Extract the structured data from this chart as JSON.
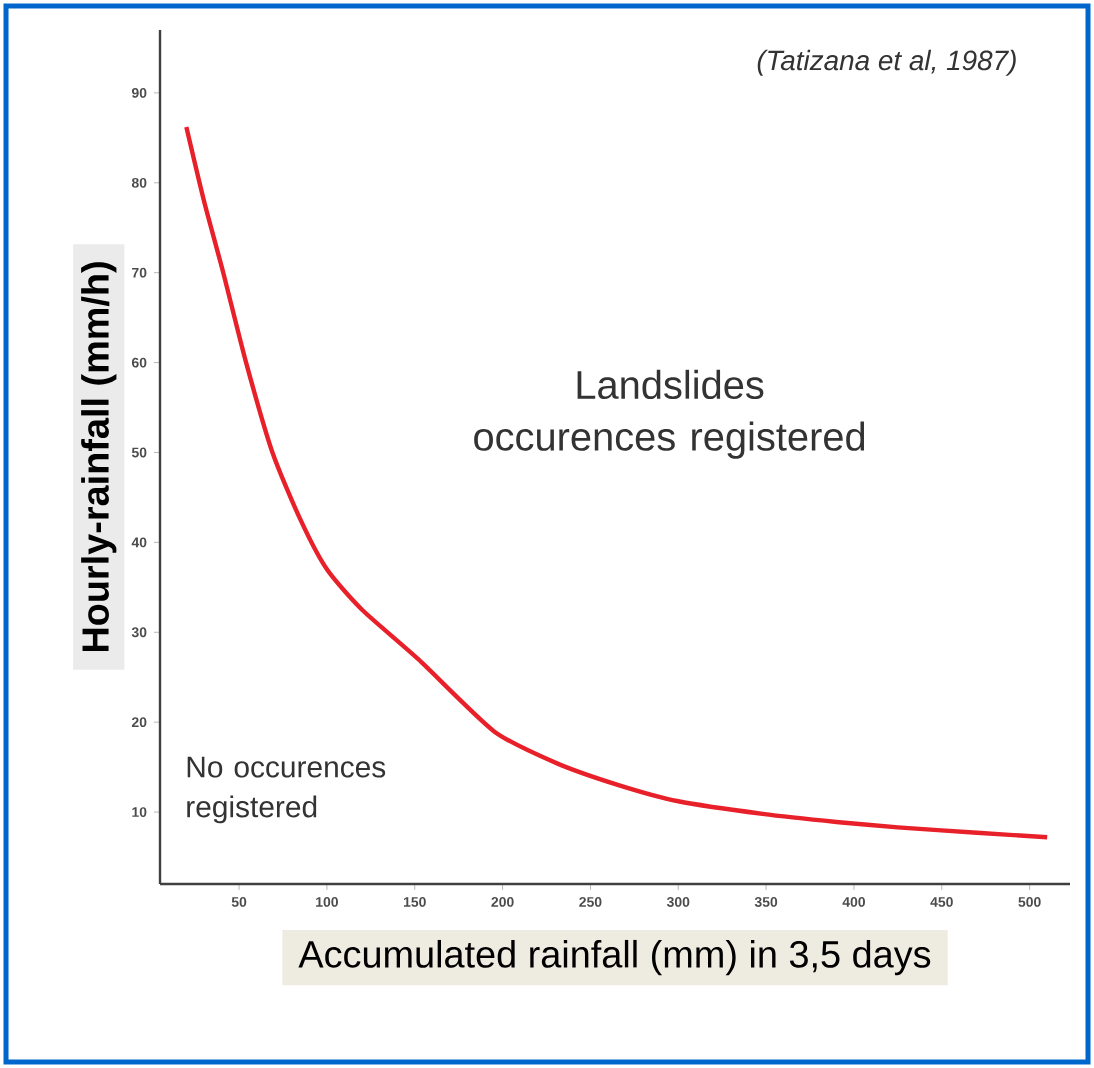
{
  "chart_data": {
    "type": "line",
    "xlabel": "Accumulated rainfall (mm) in 3,5 days",
    "ylabel": "Hourly-rainfall (mm/h)",
    "annotations": [
      "(Tatizana et al, 1987)",
      "Landslides occurences registered",
      "No occurences registered"
    ],
    "x": [
      20,
      30,
      41,
      54,
      69,
      85,
      100,
      120,
      152,
      195,
      230,
      266,
      300,
      348,
      390,
      425,
      470,
      510
    ],
    "series": [
      {
        "color": "#e8202a",
        "values": [
          86.2,
          78,
          70,
          60,
          50,
          42.5,
          37,
          32.5,
          27,
          19,
          15.5,
          13,
          11.2,
          9.8,
          8.9,
          8.3,
          7.7,
          7.2
        ]
      }
    ],
    "xlim": [
      5,
      523
    ],
    "ylim": [
      2,
      97
    ],
    "xticks": [
      50,
      100,
      150,
      200,
      250,
      300,
      350,
      400,
      450,
      500
    ],
    "yticks": [
      10,
      20,
      30,
      40,
      50,
      60,
      70,
      80,
      90
    ],
    "grid": false,
    "marker": "none",
    "line_style": "solid"
  }
}
